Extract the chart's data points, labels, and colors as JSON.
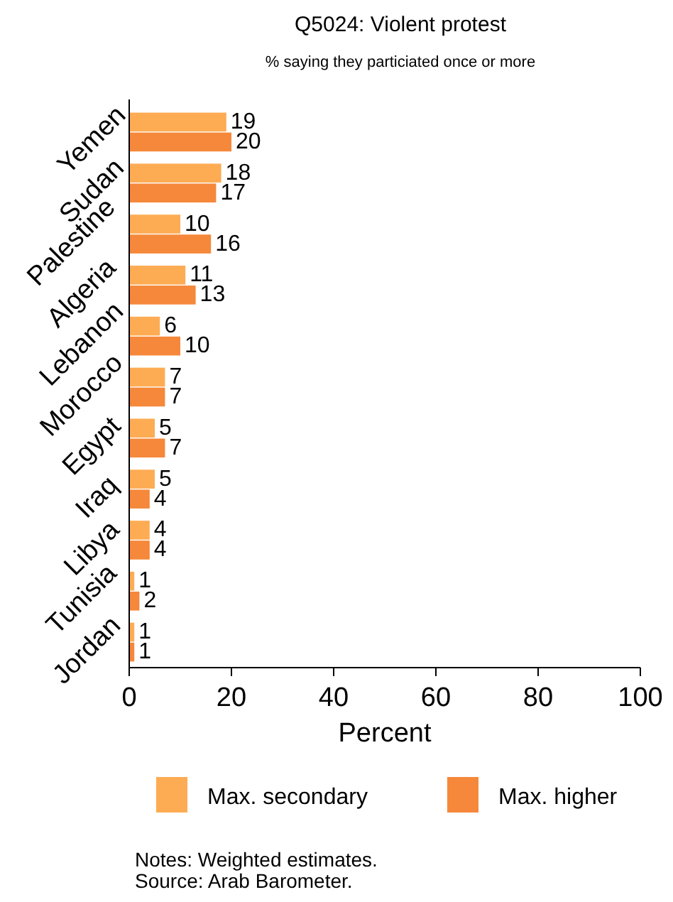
{
  "chart_data": {
    "type": "bar",
    "orientation": "horizontal",
    "title": "Q5024: Violent protest",
    "subtitle": "% saying they particiated once or more",
    "xlabel": "Percent",
    "categories": [
      "Yemen",
      "Sudan",
      "Palestine",
      "Algeria",
      "Lebanon",
      "Morocco",
      "Egypt",
      "Iraq",
      "Libya",
      "Tunisia",
      "Jordan"
    ],
    "series": [
      {
        "name": "Max. secondary",
        "color": "#fdac54",
        "values": [
          19,
          18,
          10,
          11,
          6,
          7,
          5,
          5,
          4,
          1,
          1
        ]
      },
      {
        "name": "Max. higher",
        "color": "#f5883a",
        "values": [
          20,
          17,
          16,
          13,
          10,
          7,
          7,
          4,
          4,
          2,
          1
        ]
      }
    ],
    "xlim": [
      0,
      100
    ],
    "xticks": [
      0,
      20,
      40,
      60,
      80,
      100
    ],
    "data_labels": true,
    "grid": false,
    "legend": "bottom",
    "annotations": [
      "Notes: Weighted estimates.",
      "Source: Arab Barometer."
    ]
  }
}
